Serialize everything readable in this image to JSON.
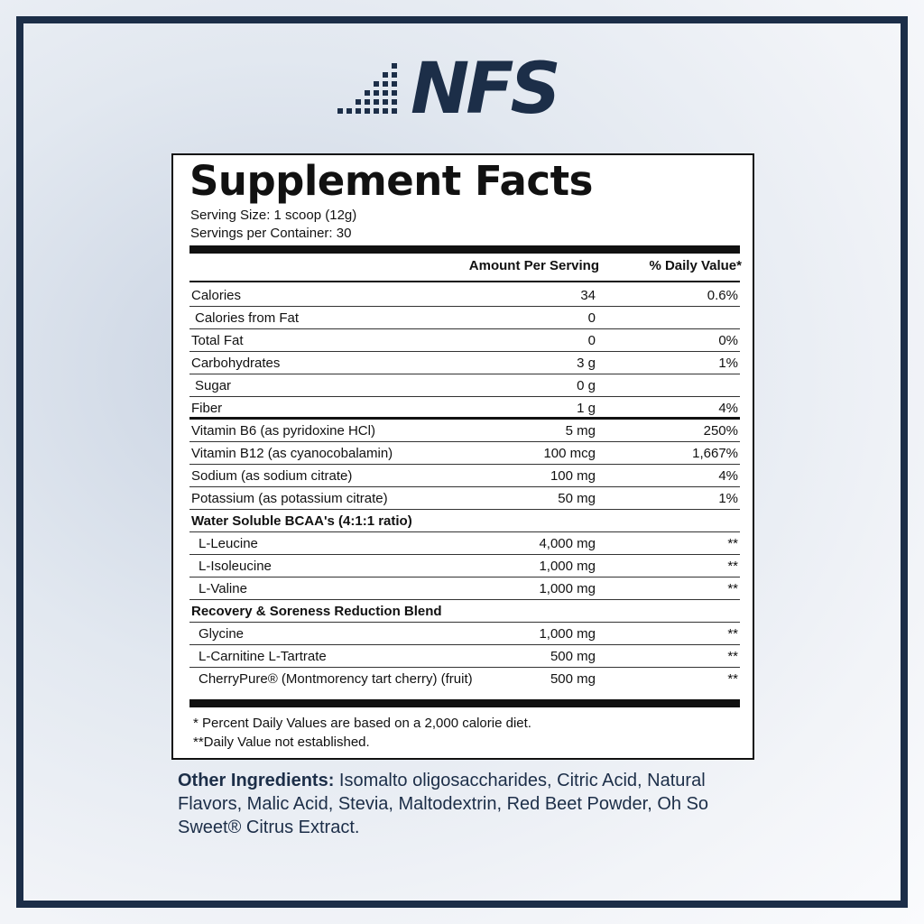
{
  "logo": "NFS",
  "panel": {
    "title": "Supplement Facts",
    "serving_size": "Serving Size: 1 scoop (12g)",
    "servings": "Servings per Container: 30",
    "header": [
      "Amount Per Serving",
      "% Daily Value*"
    ],
    "rows": [
      {
        "name": "Calories",
        "amount": "34",
        "dv": "0.6%"
      },
      {
        "name": "Calories from Fat",
        "amount": "0"
      },
      {
        "name": "Total Fat",
        "amount": "0",
        "dv": "0%"
      },
      {
        "name": "Carbohydrates",
        "amount": "3 g",
        "dv": "1%"
      },
      {
        "name": "Sugar",
        "amount": "0 g"
      },
      {
        "name": "Fiber",
        "amount": "1 g",
        "dv": "4%"
      },
      {
        "name": "Vitamin B6 (as pyridoxine HCl)",
        "amount": "5 mg",
        "dv": "250%"
      },
      {
        "name": "Vitamin B12 (as cyanocobalamin)",
        "amount": "100 mcg",
        "dv": "1,667%"
      },
      {
        "name": "Sodium (as sodium citrate)",
        "amount": "100 mg",
        "dv": "4%"
      },
      {
        "name": "Potassium (as potassium citrate)",
        "amount": "50 mg",
        "dv": "1%"
      },
      {
        "name": "Water Soluble BCAA's (4:1:1 ratio)"
      },
      {
        "name": "L-Leucine",
        "amount": "4,000 mg",
        "dv": "**"
      },
      {
        "name": "L-Isoleucine",
        "amount": "1,000 mg",
        "dv": "**"
      },
      {
        "name": "L-Valine",
        "amount": "1,000 mg",
        "dv": "**"
      },
      {
        "name": "Recovery & Soreness Reduction Blend"
      },
      {
        "name": "Glycine",
        "amount": "1,000 mg",
        "dv": "**"
      },
      {
        "name": "L-Carnitine L-Tartrate",
        "amount": "500 mg",
        "dv": "**"
      },
      {
        "name": "CherryPure® (Montmorency tart cherry) (fruit)",
        "amount": "500 mg",
        "dv": "**"
      }
    ],
    "footnotes": [
      "* Percent Daily Values are based on a 2,000 calorie diet.",
      "**Daily Value not established."
    ]
  },
  "other_ingredients": {
    "label": "Other Ingredients:",
    "text": "Isomalto oligosaccharides, Citric Acid, Natural Flavors, Malic Acid, Stevia, Maltodextrin, Red Beet Powder, Oh So Sweet® Citrus Extract."
  }
}
